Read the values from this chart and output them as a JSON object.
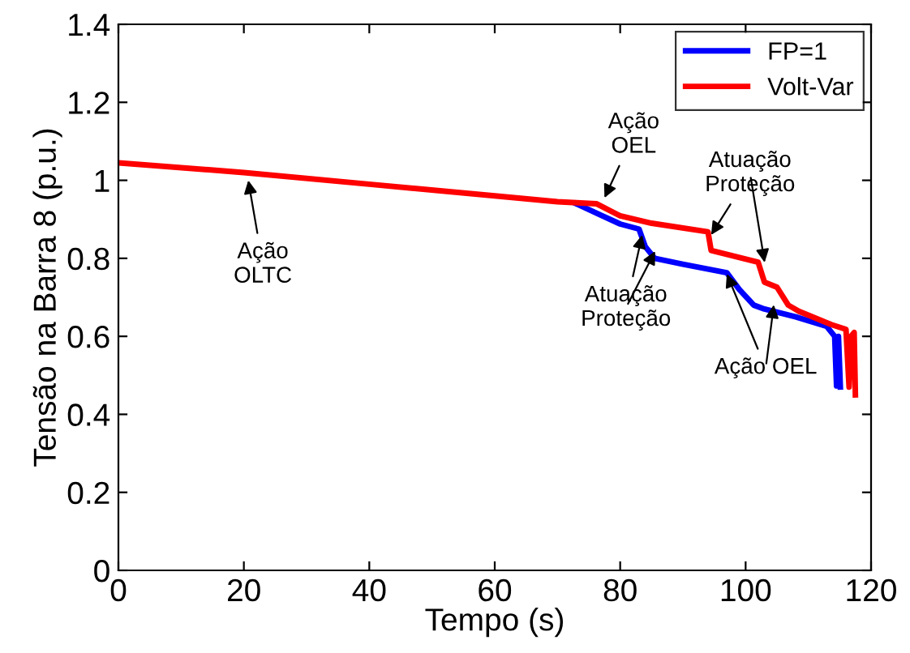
{
  "chart_data": {
    "type": "line",
    "xlabel": "Tempo (s)",
    "ylabel": "Tensão na Barra 8 (p.u.)",
    "xlim": [
      0,
      120
    ],
    "ylim": [
      0,
      1.4
    ],
    "xticks": [
      0,
      20,
      40,
      60,
      80,
      100,
      120
    ],
    "yticks": [
      0,
      0.2,
      0.4,
      0.6,
      0.8,
      1,
      1.2,
      1.4
    ],
    "grid": false,
    "legend": "top right",
    "line_style": "solid",
    "marker": "none",
    "series": [
      {
        "name": "FP=1",
        "color": "#0000ff",
        "x": [
          73,
          77,
          80,
          83,
          84,
          85.5,
          90,
          97,
          99,
          101.3,
          103,
          108,
          112.9,
          114.2,
          114.5,
          114.8,
          115.1
        ],
        "values": [
          0.94,
          0.91,
          0.888,
          0.875,
          0.83,
          0.8,
          0.785,
          0.763,
          0.72,
          0.68,
          0.67,
          0.65,
          0.626,
          0.6,
          0.473,
          0.6,
          0.47
        ]
      },
      {
        "name": "Volt-Var",
        "color": "#ff0000",
        "x": [
          0,
          20,
          40,
          60,
          70,
          76.2,
          80,
          85,
          94,
          94.5,
          102,
          103,
          105,
          106.8,
          108.5,
          113.7,
          116,
          116.5,
          116.8,
          117.3,
          117.5
        ],
        "values": [
          1.045,
          1.02,
          0.99,
          0.96,
          0.945,
          0.94,
          0.909,
          0.89,
          0.868,
          0.82,
          0.79,
          0.739,
          0.726,
          0.68,
          0.664,
          0.63,
          0.618,
          0.47,
          0.6,
          0.61,
          0.45
        ]
      }
    ],
    "annotations": [
      {
        "text": "Ação\nOLTC",
        "x": 20.7,
        "y": 1.0
      },
      {
        "text": "Ação\nOEL",
        "x": 77.5,
        "y": 0.955
      },
      {
        "text": "Atuação\nProteção",
        "x": 94.5,
        "y": 0.86
      },
      {
        "text": "Atuação\nProteção",
        "x": 83.5,
        "y": 0.86
      },
      {
        "text": "Ação OEL",
        "x": 97,
        "y": 0.76
      }
    ]
  }
}
